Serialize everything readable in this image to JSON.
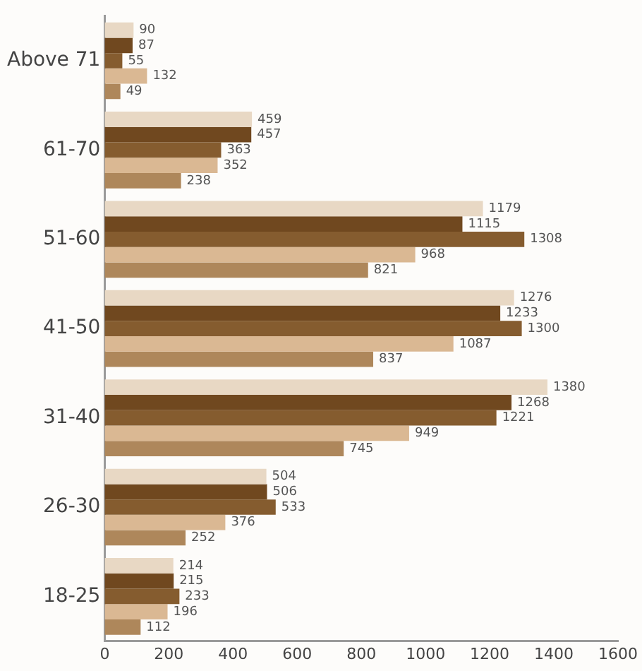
{
  "chart_data": {
    "type": "bar",
    "orientation": "horizontal",
    "categories": [
      "Above 71",
      "61-70",
      "51-60",
      "41-50",
      "31-40",
      "26-30",
      "18-25"
    ],
    "series": [
      {
        "color": "#e8d8c4",
        "values": [
          90,
          459,
          1179,
          1276,
          1380,
          504,
          214
        ]
      },
      {
        "color": "#70481f",
        "values": [
          87,
          457,
          1115,
          1233,
          1268,
          506,
          215
        ]
      },
      {
        "color": "#855c2f",
        "values": [
          55,
          363,
          1308,
          1300,
          1221,
          533,
          233
        ]
      },
      {
        "color": "#dab893",
        "values": [
          132,
          352,
          968,
          1087,
          949,
          376,
          196
        ]
      },
      {
        "color": "#ae875b",
        "values": [
          49,
          238,
          821,
          837,
          745,
          252,
          112
        ]
      }
    ],
    "xlim": [
      0,
      1600
    ],
    "xticks": [
      0,
      200,
      400,
      600,
      800,
      1000,
      1200,
      1400,
      1600
    ],
    "grid": false,
    "legend": false,
    "data_labels": true
  }
}
